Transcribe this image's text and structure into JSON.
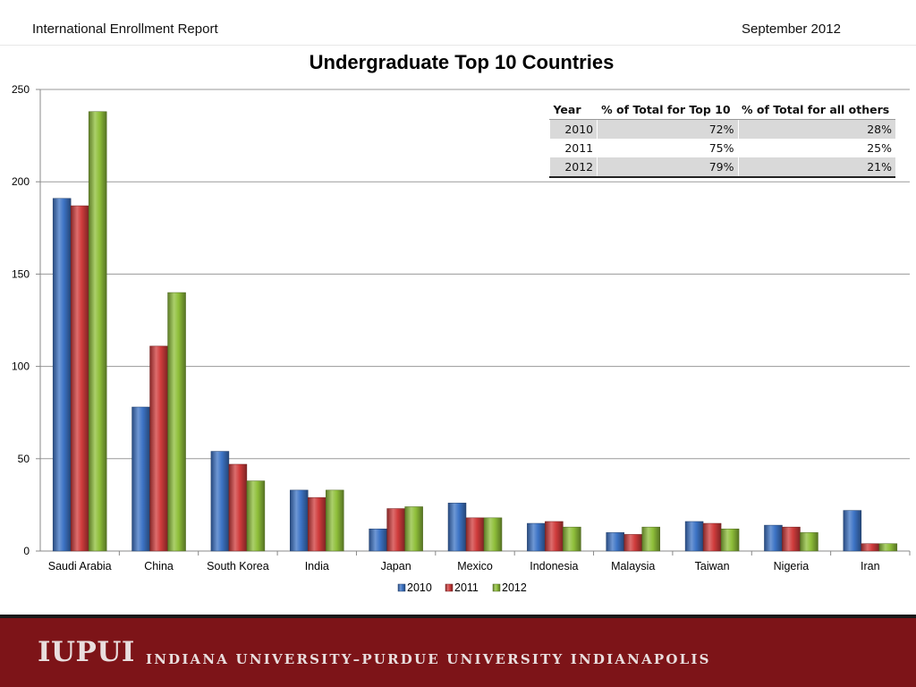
{
  "header": {
    "left": "International Enrollment Report",
    "right": "September 2012"
  },
  "chart_data": {
    "type": "bar",
    "title": "Undergraduate Top 10 Countries",
    "categories": [
      "Saudi Arabia",
      "China",
      "South Korea",
      "India",
      "Japan",
      "Mexico",
      "Indonesia",
      "Malaysia",
      "Taiwan",
      "Nigeria",
      "Iran"
    ],
    "series": [
      {
        "name": "2010",
        "color": "#3d74c6",
        "values": [
          191,
          78,
          54,
          33,
          12,
          26,
          15,
          10,
          16,
          14,
          22
        ]
      },
      {
        "name": "2011",
        "color": "#d03c3c",
        "values": [
          187,
          111,
          47,
          29,
          23,
          18,
          16,
          9,
          15,
          13,
          4
        ]
      },
      {
        "name": "2012",
        "color": "#8fbf3a",
        "values": [
          238,
          140,
          38,
          33,
          24,
          18,
          13,
          13,
          12,
          10,
          4
        ]
      }
    ],
    "ylim": [
      0,
      250
    ],
    "yticks": [
      0,
      50,
      100,
      150,
      200,
      250
    ],
    "grid": true,
    "legend": "bottom"
  },
  "summary_table": {
    "headers": [
      "Year",
      "% of Total for Top 10",
      "% of Total for all others"
    ],
    "rows": [
      [
        "2010",
        "72%",
        "28%"
      ],
      [
        "2011",
        "75%",
        "25%"
      ],
      [
        "2012",
        "79%",
        "21%"
      ]
    ]
  },
  "footer": {
    "logo": "IUPUI",
    "name": "INDIANA UNIVERSITY–PURDUE UNIVERSITY INDIANAPOLIS",
    "color": "#7d1418"
  }
}
